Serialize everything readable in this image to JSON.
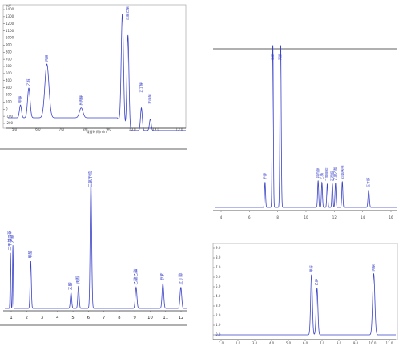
{
  "chart_data": [
    {
      "id": "c1",
      "type": "line",
      "xlim": [
        5.5,
        12.5
      ],
      "ylim": [
        -300,
        1600
      ],
      "xticks": [
        "5.0",
        "6.0",
        "7.0",
        "8.0",
        "9.0",
        "10.0",
        "11.0",
        "12.0"
      ],
      "yticks": [
        "1400",
        "1300",
        "1200",
        "1100",
        "1000",
        "900",
        "800",
        "700",
        "600",
        "500",
        "400",
        "300",
        "200",
        "100",
        "0",
        "-100",
        "-200"
      ],
      "xlabel": "保留时间(min)",
      "ylabel": "mV",
      "peaks": [
        {
          "x": 5.99,
          "h": 180,
          "w": 0.04,
          "label": "甲醇"
        },
        {
          "x": 6.32,
          "h": 420,
          "w": 0.05,
          "label": "乙醇"
        },
        {
          "x": 7.03,
          "h": 760,
          "w": 0.08,
          "label": "丙酮"
        },
        {
          "x": 8.38,
          "h": 140,
          "w": 0.07,
          "label": "异丙醇"
        },
        {
          "x": 10.0,
          "h": 1560,
          "w": 0.045,
          "label": ""
        },
        {
          "x": 10.22,
          "h": 1350,
          "w": 0.04,
          "label": "乙酸乙酯"
        },
        {
          "x": 10.75,
          "h": 320,
          "w": 0.035,
          "label": "正丁醇"
        },
        {
          "x": 11.1,
          "h": 160,
          "w": 0.035,
          "label": "正丙醇"
        }
      ]
    },
    {
      "id": "c2",
      "type": "line",
      "xlim": [
        0.7,
        12.9
      ],
      "ylim": [
        0,
        1000
      ],
      "xticks": [
        "1",
        "2",
        "3",
        "4",
        "5",
        "6",
        "7",
        "8",
        "9",
        "10",
        "11",
        "12"
      ],
      "peaks": [
        {
          "x": 1.08,
          "h": 420,
          "w": 0.025,
          "label": "二甲基亚砜"
        },
        {
          "x": 1.24,
          "h": 480,
          "w": 0.025,
          "label": "乙腈"
        },
        {
          "x": 2.43,
          "h": 360,
          "w": 0.04,
          "label": "甲醇"
        },
        {
          "x": 5.12,
          "h": 120,
          "w": 0.045,
          "label": "乙醇"
        },
        {
          "x": 5.62,
          "h": 170,
          "w": 0.045,
          "label": "丙酮"
        },
        {
          "x": 6.45,
          "h": 960,
          "w": 0.05,
          "label": "二氯甲烷"
        },
        {
          "x": 9.47,
          "h": 160,
          "w": 0.055,
          "label": "乙酸乙酯"
        },
        {
          "x": 11.26,
          "h": 190,
          "w": 0.055,
          "label": "甲苯"
        },
        {
          "x": 12.46,
          "h": 160,
          "w": 0.055,
          "label": "正丁醇"
        }
      ]
    },
    {
      "id": "c3",
      "type": "line",
      "xlim": [
        3.0,
        17.0
      ],
      "ylim": [
        0,
        1000
      ],
      "xticks": [
        "4",
        "6",
        "8",
        "10",
        "12",
        "14",
        "16"
      ],
      "peaks": [
        {
          "x": 6.86,
          "h": 160,
          "w": 0.04,
          "label": "甲醇"
        },
        {
          "x": 7.45,
          "h": 1200,
          "w": 0.04,
          "label": "乙醇"
        },
        {
          "x": 8.05,
          "h": 1150,
          "w": 0.045,
          "label": "丙酮"
        },
        {
          "x": 10.93,
          "h": 170,
          "w": 0.04,
          "label": "异丙醇"
        },
        {
          "x": 11.22,
          "h": 160,
          "w": 0.04,
          "label": "乙腈"
        },
        {
          "x": 11.63,
          "h": 150,
          "w": 0.04,
          "label": "二氯甲烷"
        },
        {
          "x": 12.02,
          "h": 150,
          "w": 0.04,
          "label": "正丙醇"
        },
        {
          "x": 12.26,
          "h": 155,
          "w": 0.04,
          "label": "乙酸乙酯"
        },
        {
          "x": 12.78,
          "h": 165,
          "w": 0.04,
          "label": "四氢呋喃"
        },
        {
          "x": 14.8,
          "h": 110,
          "w": 0.05,
          "label": "正丁醇"
        }
      ]
    },
    {
      "id": "c4",
      "type": "line",
      "xlim": [
        0.0,
        11.5
      ],
      "ylim": [
        -0.2,
        10.5
      ],
      "xticks": [
        "1.0",
        "2.0",
        "3.0",
        "4.0",
        "5.0",
        "6.0",
        "7.0",
        "8.0",
        "9.0",
        "10.0",
        "11.0"
      ],
      "yticks": [
        "9.0",
        "8.0",
        "7.0",
        "6.0",
        "5.0",
        "4.0",
        "3.0",
        "2.0",
        "1.0",
        "0.0"
      ],
      "peaks": [
        {
          "x": 6.15,
          "h": 7.2,
          "w": 0.055,
          "label": "甲醇"
        },
        {
          "x": 6.5,
          "h": 5.6,
          "w": 0.055,
          "label": "乙醇"
        },
        {
          "x": 10.1,
          "h": 7.3,
          "w": 0.07,
          "label": "丙酮"
        }
      ]
    }
  ]
}
